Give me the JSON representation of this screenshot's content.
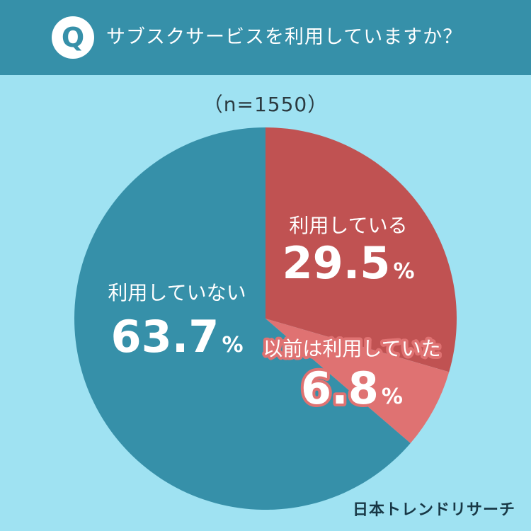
{
  "header": {
    "badge": "Q",
    "question": "サブスクサービスを利用していますか？"
  },
  "sample_label": "（n=1550）",
  "brand": "日本トレンドリサーチ",
  "colors": {
    "header_bg": "#3690a9",
    "page_bg": "#9fe2f2",
    "using": "#c05252",
    "previously": "#df7272",
    "not_using": "#3690a9"
  },
  "chart_data": {
    "type": "pie",
    "title": "サブスクサービスを利用していますか？",
    "sample_size": "n=1550",
    "slices": [
      {
        "label": "利用している",
        "value": 29.5,
        "value_label": "29.5",
        "unit": "%",
        "color": "#c05252"
      },
      {
        "label": "以前は利用していた",
        "value": 6.8,
        "value_label": "6.8",
        "unit": "%",
        "color": "#df7272"
      },
      {
        "label": "利用していない",
        "value": 63.7,
        "value_label": "63.7",
        "unit": "%",
        "color": "#3690a9"
      }
    ]
  }
}
